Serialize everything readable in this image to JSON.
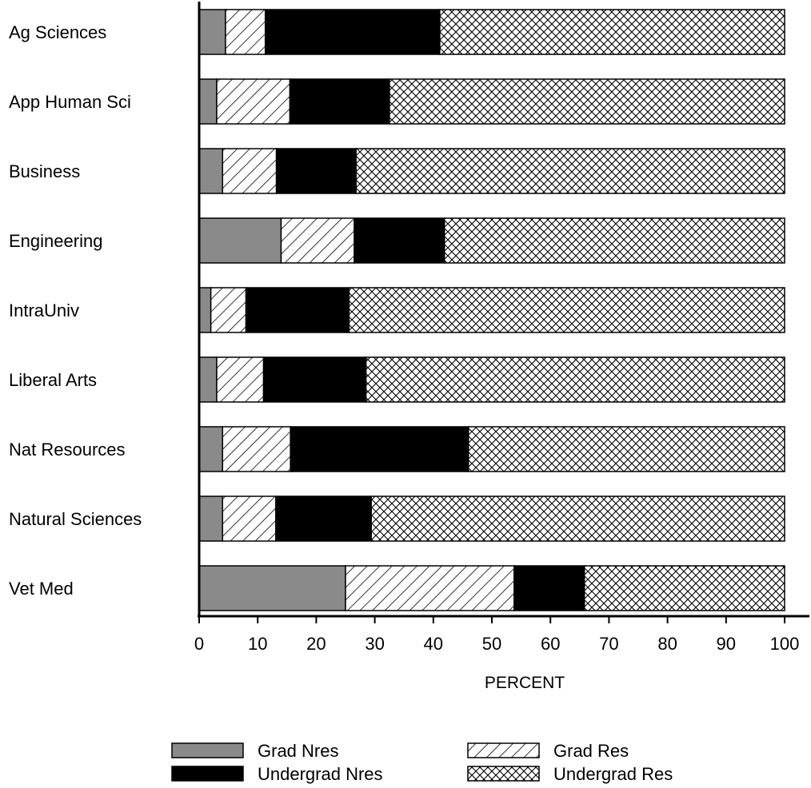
{
  "chart_data": {
    "type": "bar",
    "orientation": "horizontal",
    "stacked": true,
    "title": "",
    "xlabel": "PERCENT",
    "ylabel": "",
    "xlim": [
      0,
      100
    ],
    "xticks": [
      0,
      10,
      20,
      30,
      40,
      50,
      60,
      70,
      80,
      90,
      100
    ],
    "grid": false,
    "legend_position": "bottom",
    "categories": [
      "Ag Sciences",
      "App Human Sci",
      "Business",
      "Engineering",
      "IntraUniv",
      "Liberal Arts",
      "Nat Resources",
      "Natural Sciences",
      "Vet Med"
    ],
    "series": [
      {
        "name": "Grad Nres",
        "fill": "gray",
        "color": "#8a8a8a",
        "values": [
          4.5,
          3,
          4,
          14,
          2,
          3,
          4,
          4,
          25
        ]
      },
      {
        "name": "Grad Res",
        "fill": "diagonal-hatch",
        "color": "#000000",
        "values": [
          6.8,
          12.5,
          9.2,
          12.5,
          6,
          8,
          11.6,
          9.1,
          28.8
        ]
      },
      {
        "name": "Undergrad Nres",
        "fill": "solid",
        "color": "#000000",
        "values": [
          29.8,
          17,
          13.6,
          15.4,
          17.6,
          17.5,
          30.4,
          16.3,
          12
        ]
      },
      {
        "name": "Undergrad Res",
        "fill": "crosshatch",
        "color": "#000000",
        "values": [
          58.9,
          67.5,
          73.2,
          58.1,
          74.4,
          71.5,
          54,
          70.6,
          34.2
        ]
      }
    ],
    "legend_order": [
      "Grad Nres",
      "Grad Res",
      "Undergrad Nres",
      "Undergrad Res"
    ]
  }
}
